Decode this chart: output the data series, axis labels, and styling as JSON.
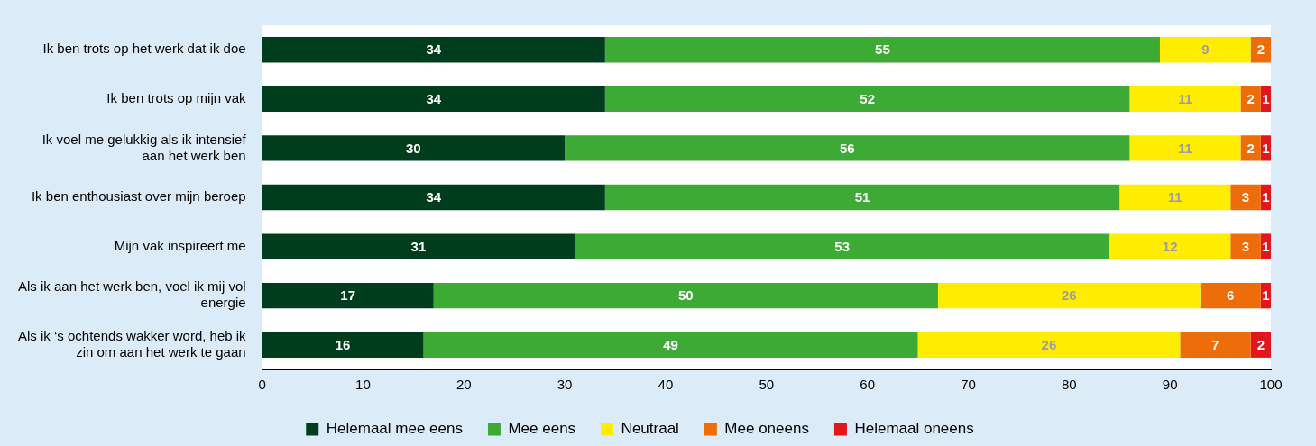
{
  "chart_data": {
    "type": "bar",
    "orientation": "horizontal",
    "stacked": true,
    "data_labels": true,
    "grid": false,
    "legend": "bottom",
    "categories": [
      "Ik ben trots op het werk dat ik doe",
      "Ik ben trots op mijn vak",
      "Ik voel me gelukkig als ik intensief aan het werk ben",
      "Ik ben enthousiast over mijn beroep",
      "Mijn vak inspireert me",
      "Als ik aan het werk ben, voel ik mij vol energie",
      "Als ik ‘s ochtends wakker word, heb ik zin om aan het werk te gaan"
    ],
    "xlim": [
      0,
      100
    ],
    "xticks": [
      0,
      10,
      20,
      30,
      40,
      50,
      60,
      70,
      80,
      90,
      100
    ],
    "series": [
      {
        "name": "Helemaal mee eens",
        "color": "#003d1c",
        "values": [
          34,
          34,
          30,
          34,
          31,
          17,
          16
        ]
      },
      {
        "name": "Mee eens",
        "color": "#3daa35",
        "values": [
          55,
          52,
          56,
          51,
          53,
          50,
          49
        ]
      },
      {
        "name": "Neutraal",
        "color": "#ffed00",
        "values": [
          9,
          11,
          11,
          11,
          12,
          26,
          26
        ]
      },
      {
        "name": "Mee oneens",
        "color": "#ec6d0a",
        "values": [
          2,
          2,
          2,
          3,
          3,
          6,
          7
        ]
      },
      {
        "name": "Helemaal oneens",
        "color": "#e3161b",
        "values": [
          null,
          1,
          1,
          1,
          1,
          1,
          2
        ]
      }
    ]
  }
}
